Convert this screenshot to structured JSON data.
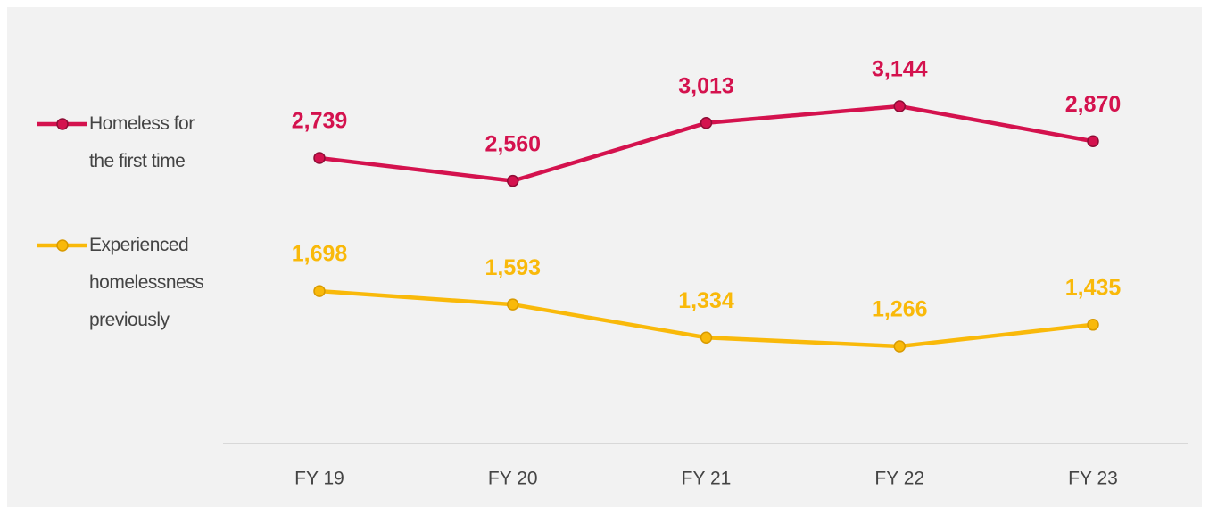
{
  "chart_data": {
    "type": "line",
    "categories": [
      "FY 19",
      "FY 20",
      "FY 21",
      "FY 22",
      "FY 23"
    ],
    "series": [
      {
        "name": "Homeless for the first time",
        "color": "#d4124e",
        "values": [
          2739,
          2560,
          3013,
          3144,
          2870
        ],
        "value_labels": [
          "2,739",
          "2,560",
          "3,013",
          "3,144",
          "2,870"
        ]
      },
      {
        "name": "Experienced homelessness previously",
        "color": "#f9b90a",
        "values": [
          1698,
          1593,
          1334,
          1266,
          1435
        ],
        "value_labels": [
          "1,698",
          "1,593",
          "1,334",
          "1,266",
          "1,435"
        ]
      }
    ],
    "legend": "left"
  }
}
